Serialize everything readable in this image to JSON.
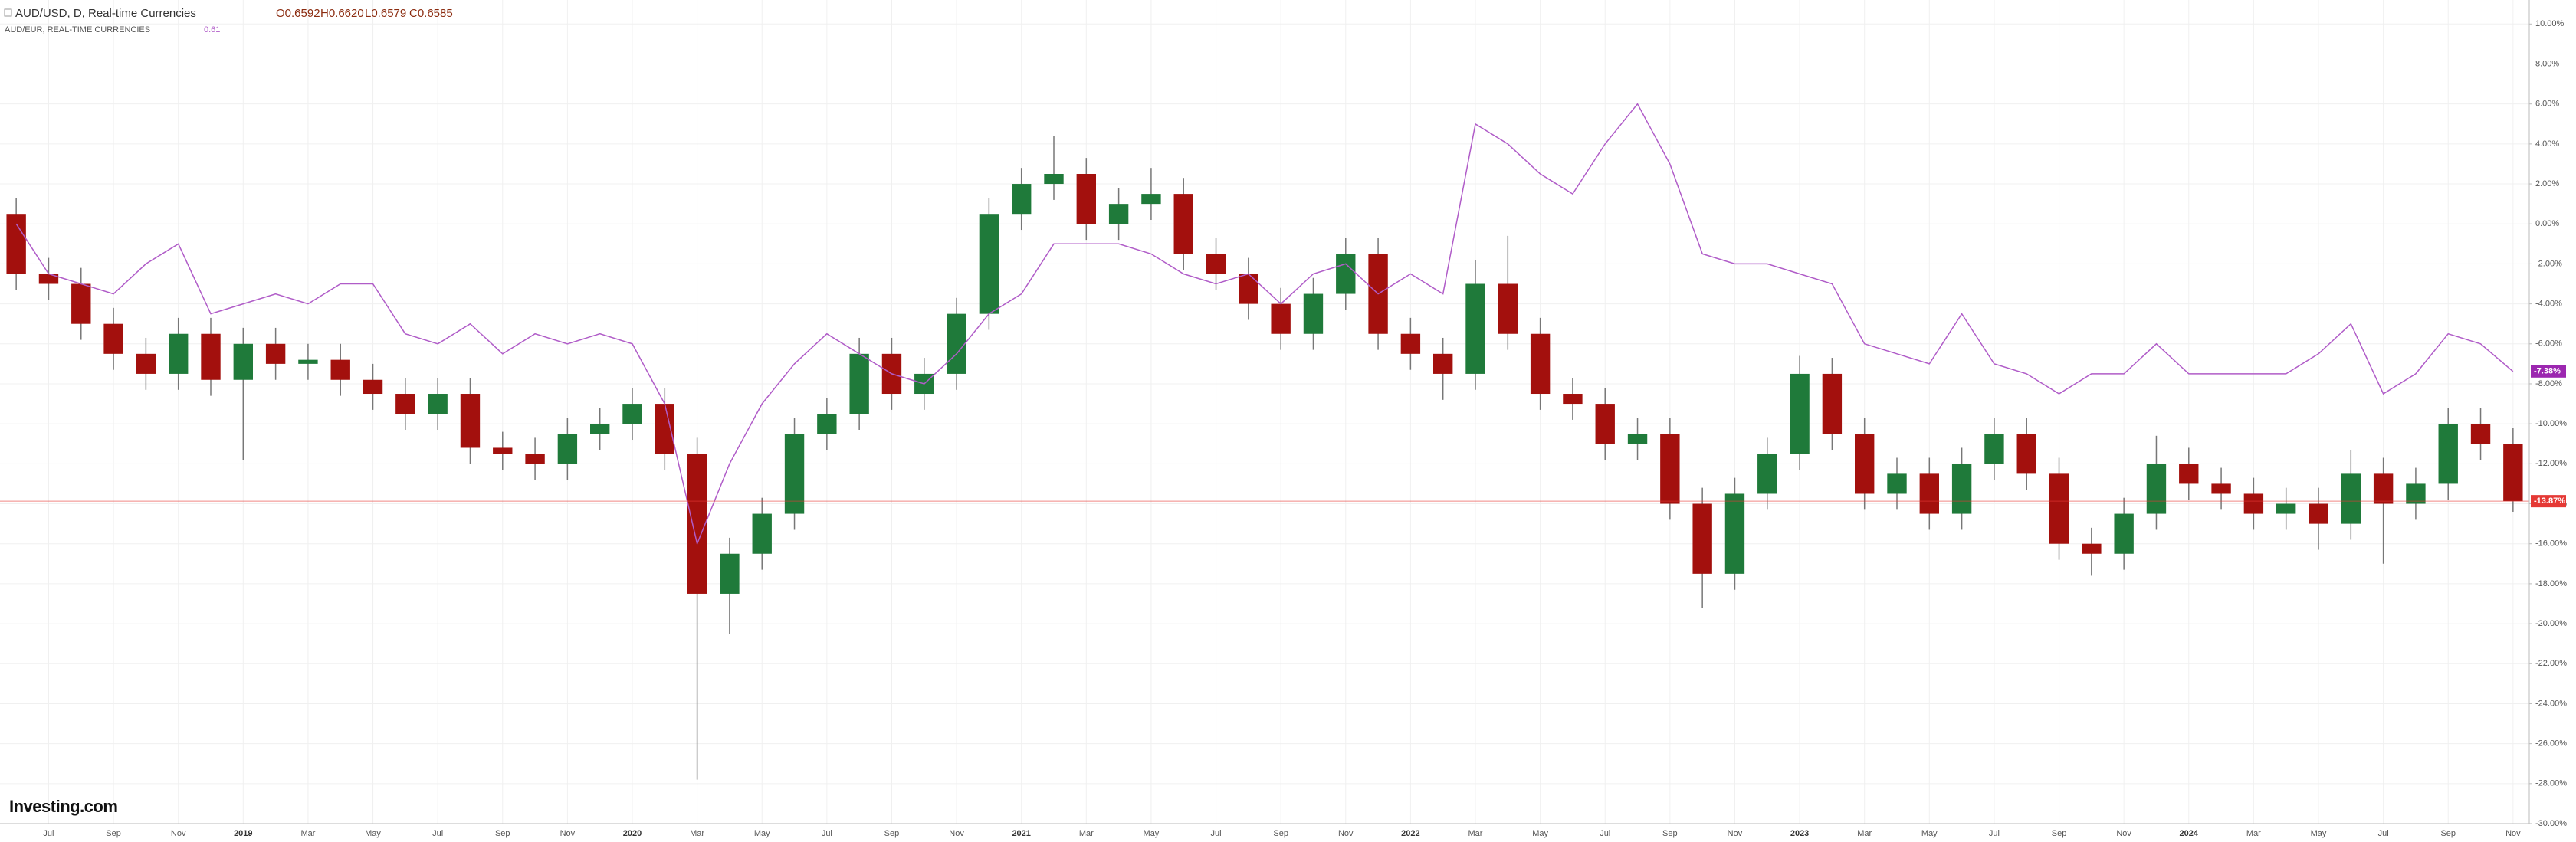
{
  "chart_data": {
    "type": "candlestick",
    "title": "AUD/USD, D, Real-time Currencies",
    "ohlc_legend": [
      "O0.6592",
      "H0.6620",
      "L0.6579",
      "C0.6585"
    ],
    "compare_title": "AUD/EUR, REAL-TIME CURRENCIES",
    "compare_value": "0.61",
    "watermark": "Investing.com",
    "categories": [
      null,
      "Jul",
      null,
      "Sep",
      null,
      "Nov",
      null,
      "2019",
      null,
      "Mar",
      null,
      "May",
      null,
      "Jul",
      null,
      "Sep",
      null,
      "Nov",
      null,
      "2020",
      null,
      "Mar",
      null,
      "May",
      null,
      "Jul",
      null,
      "Sep",
      null,
      "Nov",
      null,
      "2021",
      null,
      "Mar",
      null,
      "May",
      null,
      "Jul",
      null,
      "Sep",
      null,
      "Nov",
      null,
      "2022",
      null,
      "Mar",
      null,
      "May",
      null,
      "Jul",
      null,
      "Sep",
      null,
      "Nov",
      null,
      "2023",
      null,
      "Mar",
      null,
      "May",
      null,
      "Jul",
      null,
      "Sep",
      null,
      "Nov",
      null,
      "2024",
      null,
      "Mar",
      null,
      "May",
      null,
      "Jul",
      null,
      "Sep",
      null,
      "Nov"
    ],
    "series": [
      {
        "name": "AUD/USD, D, Real-time Currencies",
        "type": "candlestick",
        "up_color": "#1f7a3a",
        "down_color": "#a3100d",
        "wick_color": "#777777",
        "open": [
          0.5,
          -2.5,
          -3.0,
          -5.0,
          -6.5,
          -7.5,
          -5.5,
          -7.8,
          -6.0,
          -7.0,
          -6.8,
          -7.8,
          -8.5,
          -9.5,
          -8.5,
          -11.2,
          -11.5,
          -12.0,
          -10.5,
          -10.0,
          -9.0,
          -11.5,
          -18.5,
          -16.5,
          -14.5,
          -10.5,
          -9.5,
          -6.5,
          -8.5,
          -7.5,
          -4.5,
          0.5,
          2.0,
          2.5,
          0.0,
          1.0,
          1.5,
          -1.5,
          -2.5,
          -4.0,
          -5.5,
          -3.5,
          -1.5,
          -5.5,
          -6.5,
          -7.5,
          -3.0,
          -5.5,
          -8.5,
          -9.0,
          -11.0,
          -10.5,
          -14.0,
          -17.5,
          -13.5,
          -11.5,
          -7.5,
          -10.5,
          -13.5,
          -12.5,
          -14.5,
          -12.0,
          -10.5,
          -12.5,
          -16.0,
          -16.5,
          -14.5,
          -12.0,
          -13.0,
          -13.5,
          -14.5,
          -14.0,
          -15.0,
          -12.5,
          -14.0,
          -13.0,
          -10.0,
          -11.0
        ],
        "high": [
          1.3,
          -1.7,
          -2.2,
          -4.2,
          -5.7,
          -4.7,
          -4.7,
          -5.2,
          -5.2,
          -6.0,
          -6.0,
          -7.0,
          -7.7,
          -7.7,
          -7.7,
          -10.4,
          -10.7,
          -9.7,
          -9.2,
          -8.2,
          -8.2,
          -10.7,
          -15.7,
          -13.7,
          -9.7,
          -8.7,
          -5.7,
          -5.7,
          -6.7,
          -3.7,
          1.3,
          2.8,
          4.4,
          3.3,
          1.8,
          2.8,
          2.3,
          -0.7,
          -1.7,
          -3.2,
          -2.7,
          -0.7,
          -0.7,
          -4.7,
          -5.7,
          -1.8,
          -0.6,
          -4.7,
          -7.7,
          -8.2,
          -9.7,
          -9.7,
          -13.2,
          -12.7,
          -10.7,
          -6.6,
          -6.7,
          -9.7,
          -11.7,
          -11.7,
          -11.2,
          -9.7,
          -9.7,
          -11.7,
          -15.2,
          -13.7,
          -10.6,
          -11.2,
          -12.2,
          -12.7,
          -13.2,
          -13.2,
          -11.3,
          -11.7,
          -12.2,
          -9.2,
          -9.2,
          -10.2
        ],
        "low": [
          -3.3,
          -3.8,
          -5.8,
          -7.3,
          -8.3,
          -8.3,
          -8.6,
          -11.8,
          -7.8,
          -7.8,
          -8.6,
          -9.3,
          -10.3,
          -10.3,
          -12.0,
          -12.3,
          -12.8,
          -12.8,
          -11.3,
          -10.8,
          -12.3,
          -27.8,
          -20.5,
          -17.3,
          -15.3,
          -11.3,
          -10.3,
          -9.3,
          -9.3,
          -8.3,
          -5.3,
          -0.3,
          1.2,
          -0.8,
          -0.8,
          0.2,
          -2.3,
          -3.3,
          -4.8,
          -6.3,
          -6.3,
          -4.3,
          -6.3,
          -7.3,
          -8.8,
          -8.3,
          -6.3,
          -9.3,
          -9.8,
          -11.8,
          -11.8,
          -14.8,
          -19.2,
          -18.3,
          -14.3,
          -12.3,
          -11.3,
          -14.3,
          -14.3,
          -15.3,
          -15.3,
          -12.8,
          -13.3,
          -16.8,
          -17.6,
          -17.3,
          -15.3,
          -13.8,
          -14.3,
          -15.3,
          -15.3,
          -16.3,
          -15.8,
          -17.0,
          -14.8,
          -13.8,
          -11.8,
          -14.4
        ],
        "close": [
          -2.5,
          -3.0,
          -5.0,
          -6.5,
          -7.5,
          -5.5,
          -7.8,
          -6.0,
          -7.0,
          -6.8,
          -7.8,
          -8.5,
          -9.5,
          -8.5,
          -11.2,
          -11.5,
          -12.0,
          -10.5,
          -10.0,
          -9.0,
          -11.5,
          -18.5,
          -16.5,
          -14.5,
          -10.5,
          -9.5,
          -6.5,
          -8.5,
          -7.5,
          -4.5,
          0.5,
          2.0,
          2.5,
          0.0,
          1.0,
          1.5,
          -1.5,
          -2.5,
          -4.0,
          -5.5,
          -3.5,
          -1.5,
          -5.5,
          -6.5,
          -7.5,
          -3.0,
          -5.5,
          -8.5,
          -9.0,
          -11.0,
          -10.5,
          -14.0,
          -17.5,
          -13.5,
          -11.5,
          -7.5,
          -10.5,
          -13.5,
          -12.5,
          -14.5,
          -12.0,
          -10.5,
          -12.5,
          -16.0,
          -16.5,
          -14.5,
          -12.0,
          -13.0,
          -13.5,
          -14.5,
          -14.0,
          -15.0,
          -12.5,
          -14.0,
          -13.0,
          -10.0,
          -11.0,
          -13.87
        ],
        "price_line": {
          "value": -13.87,
          "label": "-13.87%",
          "color": "#e53935"
        }
      },
      {
        "name": "AUD/EUR, REAL-TIME CURRENCIES",
        "type": "line",
        "color": "#b05cc8",
        "values": [
          0,
          -2.5,
          -3,
          -3.5,
          -2,
          -1,
          -4.5,
          -4,
          -3.5,
          -4,
          -3,
          -3,
          -5.5,
          -6,
          -5,
          -6.5,
          -5.5,
          -6,
          -5.5,
          -6,
          -9,
          -16,
          -12,
          -9,
          -7,
          -5.5,
          -6.5,
          -7.5,
          -8,
          -6.5,
          -4.5,
          -3.5,
          -1,
          -1,
          -1,
          -1.5,
          -2.5,
          -3,
          -2.5,
          -4,
          -2.5,
          -2,
          -3.5,
          -2.5,
          -3.5,
          5,
          4,
          2.5,
          1.5,
          4,
          6,
          3,
          -1.5,
          -2,
          -2,
          -2.5,
          -3,
          -6,
          -6.5,
          -7,
          -4.5,
          -7,
          -7.5,
          -8.5,
          -7.5,
          -7.5,
          -6,
          -7.5,
          -7.5,
          -7.5,
          -7.5,
          -6.5,
          -5,
          -8.5,
          -7.5,
          -5.5,
          -6,
          -7.38
        ],
        "price_line": {
          "value": -7.38,
          "label": "-7.38%",
          "color": "#9c27b0"
        }
      }
    ],
    "ylim": [
      -30,
      11.2
    ],
    "yticks": [
      {
        "value": -30,
        "label": "-30.00%"
      },
      {
        "value": -28,
        "label": "-28.00%"
      },
      {
        "value": -26,
        "label": "-26.00%"
      },
      {
        "value": -24,
        "label": "-24.00%"
      },
      {
        "value": -22,
        "label": "-22.00%"
      },
      {
        "value": -20,
        "label": "-20.00%"
      },
      {
        "value": -18,
        "label": "-18.00%"
      },
      {
        "value": -16,
        "label": "-16.00%"
      },
      {
        "value": -14,
        "label": "-14.00%"
      },
      {
        "value": -12,
        "label": "-12.00%"
      },
      {
        "value": -10,
        "label": "-10.00%"
      },
      {
        "value": -8,
        "label": "-8.00%"
      },
      {
        "value": -6,
        "label": "-6.00%"
      },
      {
        "value": -4,
        "label": "-4.00%"
      },
      {
        "value": -2,
        "label": "-2.00%"
      },
      {
        "value": 0,
        "label": "0.00%"
      },
      {
        "value": 2,
        "label": "2.00%"
      },
      {
        "value": 4,
        "label": "4.00%"
      },
      {
        "value": 6,
        "label": "6.00%"
      },
      {
        "value": 8,
        "label": "8.00%"
      },
      {
        "value": 10,
        "label": "10.00%"
      }
    ],
    "grid": true
  }
}
